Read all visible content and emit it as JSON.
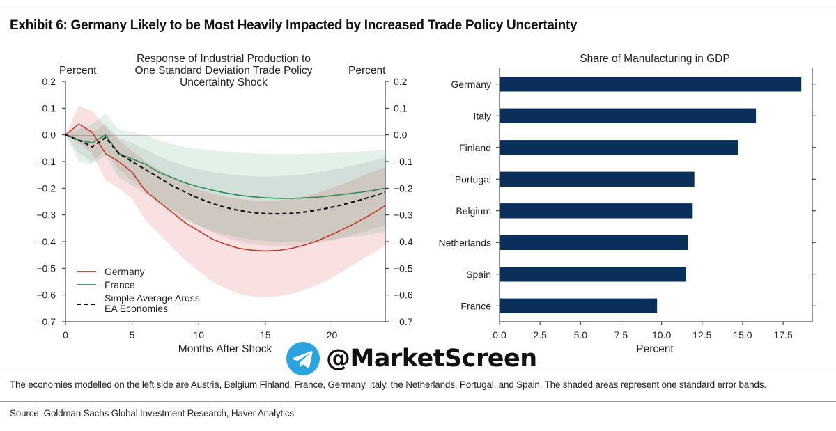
{
  "title": "Exhibit 6: Germany Likely to be Most Heavily Impacted by Increased Trade Policy Uncertainty",
  "footnote": "The economies modelled on the left side are Austria, Belgium Finland, France, Germany, Italy, the Netherlands, Portugal, and Spain. The shaded areas represent one standard error bands.",
  "source": "Source: Goldman Sachs Global Investment Research, Haver Analytics",
  "watermark": {
    "text": "@MarketScreen",
    "icon": "telegram-icon"
  },
  "colors": {
    "germany": "#c0392b",
    "france": "#2e8b57",
    "average": "#111111",
    "bar": "#0b2f5b"
  },
  "chart_data": [
    {
      "type": "line",
      "title_lines": [
        "Response of Industrial Production to",
        "One Standard Deviation Trade Policy",
        "Uncertainty Shock"
      ],
      "left_unit": "Percent",
      "right_unit": "Percent",
      "xlabel": "Months After Shock",
      "xlim": [
        0,
        24
      ],
      "ylim": [
        -0.7,
        0.2
      ],
      "xticks": [
        "0",
        "5",
        "10",
        "15",
        "20"
      ],
      "yticks": [
        "0.2",
        "0.1",
        "0.0",
        "−0.1",
        "−0.2",
        "−0.3",
        "−0.4",
        "−0.5",
        "−0.6",
        "−0.7"
      ],
      "ytick_values": [
        0.2,
        0.1,
        0.0,
        -0.1,
        -0.2,
        -0.3,
        -0.4,
        -0.5,
        -0.6,
        -0.7
      ],
      "legend": [
        "Germany",
        "France",
        "Simple Average Aross",
        "EA Economies"
      ],
      "x": [
        0,
        1,
        2,
        3,
        4,
        5,
        6,
        7,
        8,
        9,
        10,
        11,
        12,
        13,
        14,
        15,
        16,
        17,
        18,
        19,
        20,
        21,
        22,
        23,
        24
      ],
      "series": [
        {
          "name": "Germany",
          "style": "solid",
          "values": [
            0,
            0.04,
            0.01,
            -0.07,
            -0.1,
            -0.14,
            -0.21,
            -0.25,
            -0.29,
            -0.33,
            -0.36,
            -0.39,
            -0.41,
            -0.425,
            -0.432,
            -0.435,
            -0.433,
            -0.425,
            -0.412,
            -0.395,
            -0.373,
            -0.35,
            -0.324,
            -0.296,
            -0.265
          ],
          "band_upper": [
            0,
            0.11,
            0.09,
            0.03,
            -0.02,
            -0.06,
            -0.1,
            -0.13,
            -0.16,
            -0.185,
            -0.205,
            -0.22,
            -0.232,
            -0.24,
            -0.245,
            -0.247,
            -0.245,
            -0.24,
            -0.23,
            -0.217,
            -0.2,
            -0.18,
            -0.16,
            -0.14,
            -0.12
          ],
          "band_lower": [
            0,
            -0.03,
            -0.07,
            -0.17,
            -0.2,
            -0.24,
            -0.32,
            -0.37,
            -0.42,
            -0.47,
            -0.51,
            -0.55,
            -0.575,
            -0.595,
            -0.605,
            -0.607,
            -0.604,
            -0.595,
            -0.58,
            -0.56,
            -0.535,
            -0.505,
            -0.475,
            -0.445,
            -0.415
          ]
        },
        {
          "name": "France",
          "style": "solid",
          "values": [
            0,
            -0.02,
            -0.03,
            0,
            -0.07,
            -0.09,
            -0.11,
            -0.14,
            -0.16,
            -0.18,
            -0.195,
            -0.207,
            -0.218,
            -0.226,
            -0.232,
            -0.236,
            -0.238,
            -0.238,
            -0.236,
            -0.233,
            -0.228,
            -0.222,
            -0.216,
            -0.209,
            -0.2
          ],
          "band_upper": [
            0,
            0.02,
            0.04,
            0.08,
            0.02,
            0.01,
            0,
            -0.02,
            -0.035,
            -0.045,
            -0.052,
            -0.058,
            -0.062,
            -0.066,
            -0.069,
            -0.071,
            -0.072,
            -0.072,
            -0.071,
            -0.07,
            -0.068,
            -0.066,
            -0.063,
            -0.06,
            -0.056
          ],
          "band_lower": [
            0,
            -0.1,
            -0.11,
            -0.08,
            -0.16,
            -0.19,
            -0.22,
            -0.26,
            -0.29,
            -0.32,
            -0.34,
            -0.36,
            -0.375,
            -0.385,
            -0.393,
            -0.398,
            -0.401,
            -0.402,
            -0.401,
            -0.398,
            -0.393,
            -0.387,
            -0.38,
            -0.372,
            -0.362
          ]
        },
        {
          "name": "Simple Average Aross EA Economies",
          "style": "dashed",
          "values": [
            0,
            -0.02,
            -0.045,
            -0.01,
            -0.07,
            -0.1,
            -0.13,
            -0.16,
            -0.19,
            -0.215,
            -0.238,
            -0.257,
            -0.272,
            -0.283,
            -0.291,
            -0.295,
            -0.296,
            -0.294,
            -0.289,
            -0.281,
            -0.271,
            -0.259,
            -0.246,
            -0.231,
            -0.215
          ],
          "band_upper": [
            0,
            0.03,
            0.01,
            0.04,
            -0.01,
            -0.03,
            -0.055,
            -0.08,
            -0.1,
            -0.117,
            -0.13,
            -0.14,
            -0.147,
            -0.152,
            -0.155,
            -0.156,
            -0.155,
            -0.152,
            -0.147,
            -0.14,
            -0.131,
            -0.121,
            -0.11,
            -0.098,
            -0.085
          ],
          "band_lower": [
            0,
            -0.07,
            -0.1,
            -0.06,
            -0.13,
            -0.17,
            -0.21,
            -0.245,
            -0.28,
            -0.31,
            -0.34,
            -0.365,
            -0.385,
            -0.4,
            -0.41,
            -0.416,
            -0.418,
            -0.417,
            -0.412,
            -0.405,
            -0.395,
            -0.383,
            -0.369,
            -0.354,
            -0.338
          ]
        }
      ]
    },
    {
      "type": "bar",
      "orientation": "horizontal",
      "title": "Share of Manufacturing in GDP",
      "xlabel": "Percent",
      "xlim": [
        0,
        19.3
      ],
      "xticks": [
        "0.0",
        "2.5",
        "5.0",
        "7.5",
        "10.0",
        "12.5",
        "15.0",
        "17.5"
      ],
      "xtick_values": [
        0,
        2.5,
        5,
        7.5,
        10,
        12.5,
        15,
        17.5
      ],
      "categories": [
        "Germany",
        "Italy",
        "Finland",
        "Portugal",
        "Belgium",
        "Netherlands",
        "Spain",
        "France"
      ],
      "values": [
        18.6,
        15.8,
        14.7,
        12.0,
        11.9,
        11.6,
        11.5,
        9.7
      ]
    }
  ]
}
